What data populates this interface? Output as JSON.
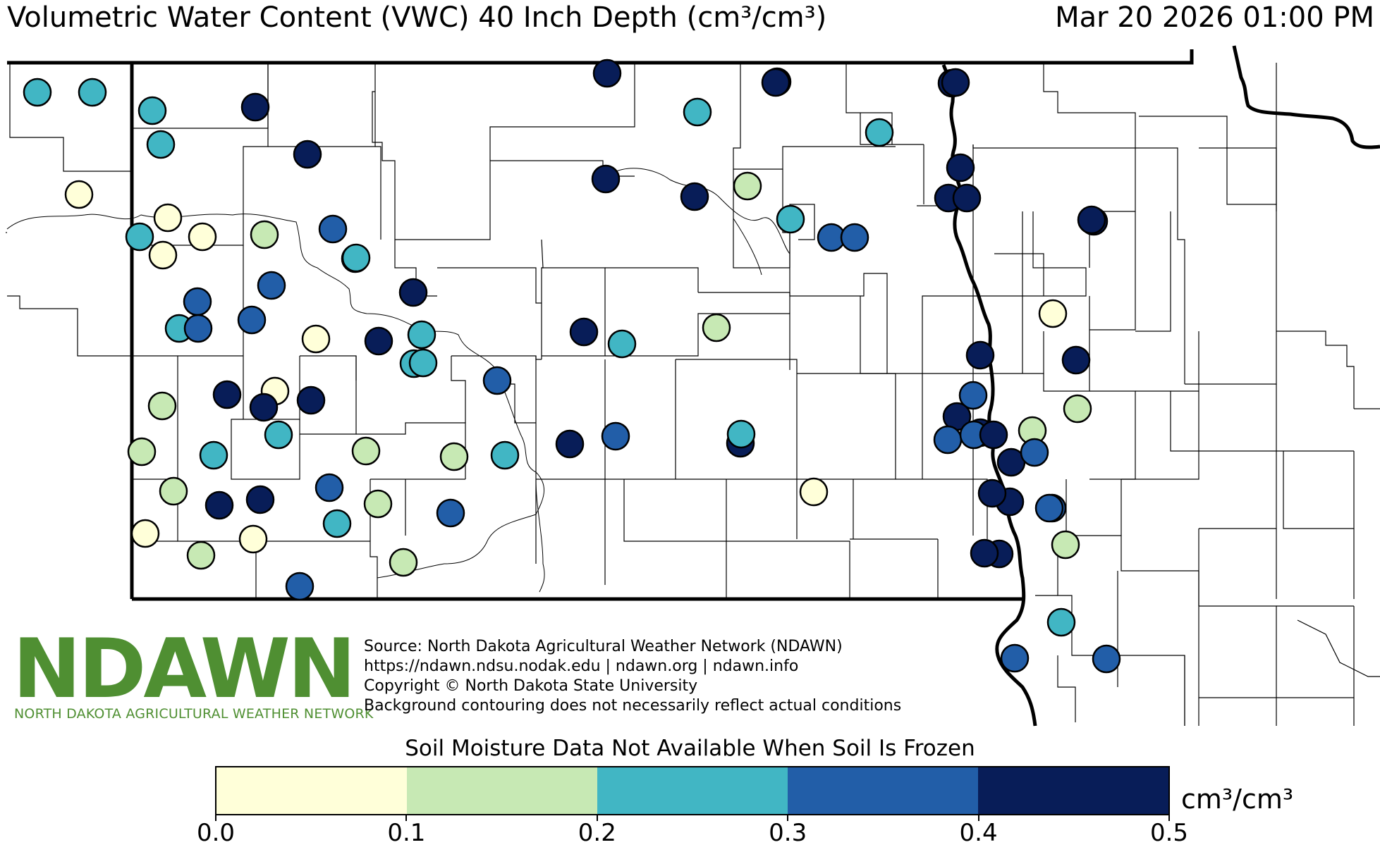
{
  "header": {
    "title": "Volumetric Water Content (VWC) 40 Inch Depth (cm³/cm³)",
    "timestamp": "Mar 20 2026 01:00 PM"
  },
  "legend": {
    "note": "Soil Moisture Data Not Available When Soil Is Frozen",
    "unit": "cm³/cm³",
    "ticks": [
      "0.0",
      "0.1",
      "0.2",
      "0.3",
      "0.4",
      "0.5"
    ],
    "bins": [
      {
        "range": [
          0.0,
          0.1
        ],
        "color": "#ffffd9"
      },
      {
        "range": [
          0.1,
          0.2
        ],
        "color": "#c7e9b4"
      },
      {
        "range": [
          0.2,
          0.3
        ],
        "color": "#41b6c4"
      },
      {
        "range": [
          0.3,
          0.4
        ],
        "color": "#225ea8"
      },
      {
        "range": [
          0.4,
          0.5
        ],
        "color": "#081d58"
      }
    ]
  },
  "logo": {
    "wordmark": "NDAWN",
    "subtitle": "NORTH DAKOTA AGRICULTURAL WEATHER NETWORK",
    "color": "#4f8f32"
  },
  "source": {
    "line1": "Source: North Dakota Agricultural Weather Network (NDAWN)",
    "line2": "https://ndawn.ndsu.nodak.edu | ndawn.org | ndawn.info",
    "line3": "Copyright © North Dakota State University",
    "line4": "Background contouring does not necessarily reflect actual conditions"
  },
  "stations": [
    {
      "bin": 2
    },
    {
      "bin": 2
    },
    {
      "bin": 2
    },
    {
      "bin": 2
    },
    {
      "bin": 0
    },
    {
      "bin": 0
    },
    {
      "bin": 2
    },
    {
      "bin": 0
    },
    {
      "bin": 0
    },
    {
      "bin": 1
    },
    {
      "bin": 4
    },
    {
      "bin": 4
    },
    {
      "bin": 3
    },
    {
      "bin": 2
    },
    {
      "bin": 3
    },
    {
      "bin": 3
    },
    {
      "bin": 3
    },
    {
      "bin": 2
    },
    {
      "bin": 3
    },
    {
      "bin": 0
    },
    {
      "bin": 4
    },
    {
      "bin": 4
    },
    {
      "bin": 2
    },
    {
      "bin": 2
    },
    {
      "bin": 3
    },
    {
      "bin": 1
    },
    {
      "bin": 4
    },
    {
      "bin": 0
    },
    {
      "bin": 4
    },
    {
      "bin": 4
    },
    {
      "bin": 1
    },
    {
      "bin": 2
    },
    {
      "bin": 2
    },
    {
      "bin": 1
    },
    {
      "bin": 1
    },
    {
      "bin": 2
    },
    {
      "bin": 1
    },
    {
      "bin": 4
    },
    {
      "bin": 4
    },
    {
      "bin": 3
    },
    {
      "bin": 2
    },
    {
      "bin": 1
    },
    {
      "bin": 3
    },
    {
      "bin": 0
    },
    {
      "bin": 0
    },
    {
      "bin": 1
    },
    {
      "bin": 3
    },
    {
      "bin": 1
    },
    {
      "bin": 4
    },
    {
      "bin": 2
    },
    {
      "bin": 4
    },
    {
      "bin": 2
    },
    {
      "bin": 4
    },
    {
      "bin": 1
    },
    {
      "bin": 4
    },
    {
      "bin": 3
    },
    {
      "bin": 4
    },
    {
      "bin": 2
    },
    {
      "bin": 2
    },
    {
      "bin": 2
    },
    {
      "bin": 4
    },
    {
      "bin": 4
    },
    {
      "bin": 1
    },
    {
      "bin": 3
    },
    {
      "bin": 2
    },
    {
      "bin": 0
    },
    {
      "bin": 4
    },
    {
      "bin": 4
    },
    {
      "bin": 3
    },
    {
      "bin": 4
    },
    {
      "bin": 4
    },
    {
      "bin": 2
    },
    {
      "bin": 4
    },
    {
      "bin": 4
    },
    {
      "bin": 4
    },
    {
      "bin": 3
    },
    {
      "bin": 4
    },
    {
      "bin": 4
    },
    {
      "bin": 3
    },
    {
      "bin": 4
    },
    {
      "bin": 3
    },
    {
      "bin": 4
    },
    {
      "bin": 4
    },
    {
      "bin": 3
    },
    {
      "bin": 4
    },
    {
      "bin": 4
    },
    {
      "bin": 4
    },
    {
      "bin": 0
    },
    {
      "bin": 4
    },
    {
      "bin": 1
    },
    {
      "bin": 1
    },
    {
      "bin": 3
    },
    {
      "bin": 3
    },
    {
      "bin": 1
    },
    {
      "bin": 4
    },
    {
      "bin": 4
    },
    {
      "bin": 2
    },
    {
      "bin": 3
    },
    {
      "bin": 3
    }
  ]
}
